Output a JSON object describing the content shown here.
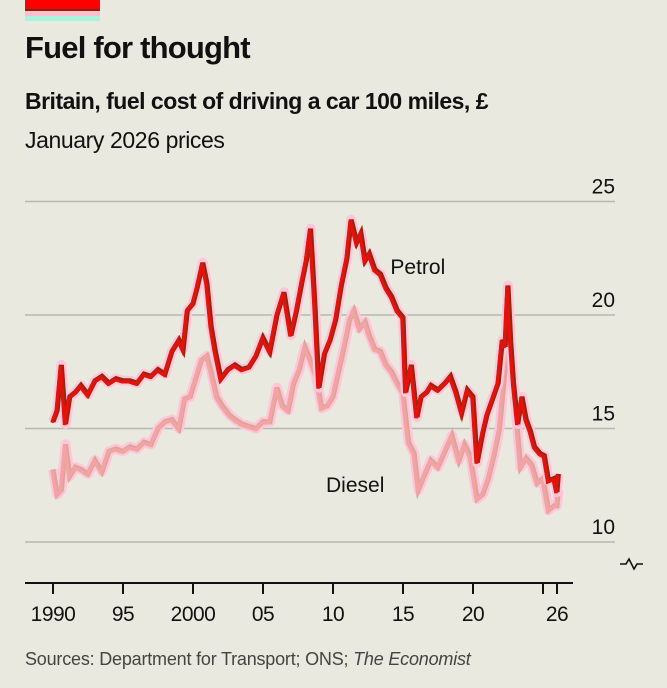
{
  "header": {
    "title": "Fuel for thought",
    "subtitle": "Britain, fuel cost of driving a car 100 miles, £",
    "subtitle2": "January 2026 prices"
  },
  "footer": {
    "sources_prefix": "Sources: Department for Transport; ONS; ",
    "sources_italic": "The Economist"
  },
  "colors": {
    "background": "#e9e9df",
    "petrol": "#e3120b",
    "petrol_dark": "#8b2a12",
    "diesel": "#f5a3a3",
    "diesel_dark": "#d8a79b",
    "halo": "#ffc6da",
    "grid": "#b7b7ad",
    "tag_red": "#ff0000"
  },
  "chart_data": {
    "type": "line",
    "title": "Fuel for thought",
    "subtitle": "Britain, fuel cost of driving a car 100 miles, £ — January 2026 prices",
    "xlabel": "",
    "ylabel": "£",
    "xlim": [
      1990,
      2026
    ],
    "ylim": [
      10,
      25
    ],
    "y_axis_side": "right",
    "y_axis_broken": true,
    "grid": true,
    "yticks": [
      10,
      15,
      20,
      25
    ],
    "ytick_labels": [
      "10",
      "15",
      "20",
      "25"
    ],
    "xticks": [
      1990,
      1995,
      2000,
      2005,
      2010,
      2015,
      2020,
      2025,
      2026
    ],
    "xtick_labels": [
      "1990",
      "95",
      "2000",
      "05",
      "10",
      "15",
      "20",
      "",
      "26"
    ],
    "legend": "inline labels",
    "series": [
      {
        "name": "Petrol",
        "label_position": "above line, around 2015",
        "x": [
          1990.0,
          1990.3,
          1990.6,
          1990.9,
          1991.2,
          1991.6,
          1992.0,
          1992.5,
          1993.0,
          1993.5,
          1994.0,
          1994.5,
          1995.0,
          1995.5,
          1996.0,
          1996.5,
          1997.0,
          1997.5,
          1998.0,
          1998.5,
          1999.0,
          1999.3,
          1999.6,
          2000.0,
          2000.3,
          2000.7,
          2001.0,
          2001.3,
          2001.6,
          2002.0,
          2002.5,
          2003.0,
          2003.5,
          2004.0,
          2004.5,
          2005.0,
          2005.5,
          2006.0,
          2006.5,
          2007.0,
          2007.4,
          2007.8,
          2008.1,
          2008.4,
          2008.7,
          2009.0,
          2009.4,
          2009.8,
          2010.2,
          2010.6,
          2011.0,
          2011.3,
          2011.7,
          2012.0,
          2012.3,
          2012.6,
          2013.0,
          2013.4,
          2013.8,
          2014.2,
          2014.6,
          2015.0,
          2015.2,
          2015.6,
          2016.0,
          2016.3,
          2016.7,
          2017.0,
          2017.5,
          2018.0,
          2018.4,
          2018.8,
          2019.2,
          2019.6,
          2020.0,
          2020.3,
          2020.7,
          2021.0,
          2021.4,
          2021.8,
          2022.1,
          2022.3,
          2022.5,
          2022.7,
          2022.9,
          2023.2,
          2023.5,
          2023.8,
          2024.1,
          2024.4,
          2024.8,
          2025.1,
          2025.4,
          2025.8,
          2026.0,
          2026.1
        ],
        "values": [
          15.3,
          15.8,
          17.8,
          15.2,
          16.4,
          16.6,
          16.9,
          16.5,
          17.1,
          17.3,
          17.0,
          17.2,
          17.1,
          17.1,
          17.0,
          17.4,
          17.3,
          17.6,
          17.4,
          18.4,
          18.9,
          18.5,
          20.2,
          20.5,
          21.2,
          22.3,
          21.4,
          19.5,
          18.4,
          17.2,
          17.6,
          17.8,
          17.6,
          17.7,
          18.2,
          19.0,
          18.4,
          20.0,
          21.0,
          19.1,
          20.2,
          21.5,
          22.4,
          23.8,
          20.6,
          16.8,
          18.3,
          18.9,
          19.8,
          21.3,
          22.5,
          24.2,
          23.2,
          23.6,
          22.4,
          22.7,
          22.0,
          21.8,
          21.2,
          20.8,
          20.2,
          19.9,
          16.6,
          17.8,
          15.5,
          16.4,
          16.6,
          16.9,
          16.7,
          17.0,
          17.3,
          16.6,
          15.7,
          16.7,
          16.4,
          13.5,
          14.8,
          15.6,
          16.3,
          17.0,
          18.9,
          18.6,
          21.3,
          18.8,
          17.0,
          15.2,
          16.4,
          15.4,
          14.9,
          14.2,
          13.9,
          13.8,
          12.7,
          12.8,
          12.2,
          13.0
        ]
      },
      {
        "name": "Diesel",
        "label_position": "below line, around 2011",
        "x": [
          1990.0,
          1990.3,
          1990.6,
          1990.9,
          1991.2,
          1991.6,
          1992.0,
          1992.5,
          1993.0,
          1993.5,
          1994.0,
          1994.5,
          1995.0,
          1995.5,
          1996.0,
          1996.5,
          1997.0,
          1997.5,
          1998.0,
          1998.5,
          1999.0,
          1999.4,
          1999.8,
          2000.2,
          2000.6,
          2001.0,
          2001.3,
          2001.7,
          2002.1,
          2002.6,
          2003.0,
          2003.5,
          2004.0,
          2004.5,
          2005.0,
          2005.5,
          2006.0,
          2006.4,
          2006.8,
          2007.2,
          2007.6,
          2008.0,
          2008.4,
          2008.8,
          2009.2,
          2009.6,
          2010.0,
          2010.4,
          2010.8,
          2011.2,
          2011.5,
          2011.9,
          2012.3,
          2012.6,
          2013.0,
          2013.4,
          2013.8,
          2014.2,
          2014.6,
          2015.0,
          2015.4,
          2015.8,
          2016.1,
          2016.5,
          2017.0,
          2017.5,
          2018.0,
          2018.5,
          2019.0,
          2019.4,
          2019.8,
          2020.3,
          2020.7,
          2021.1,
          2021.5,
          2021.9,
          2022.2,
          2022.5,
          2022.8,
          2023.1,
          2023.4,
          2023.8,
          2024.2,
          2024.6,
          2025.0,
          2025.4,
          2025.8,
          2026.0,
          2026.1
        ],
        "values": [
          13.2,
          12.1,
          12.3,
          14.3,
          12.9,
          13.3,
          13.2,
          13.0,
          13.6,
          13.1,
          14.0,
          14.1,
          14.0,
          14.2,
          14.1,
          14.4,
          14.3,
          15.0,
          15.3,
          15.4,
          15.0,
          16.3,
          16.4,
          17.2,
          18.0,
          18.2,
          17.5,
          16.4,
          16.0,
          15.6,
          15.4,
          15.2,
          15.1,
          15.0,
          15.3,
          15.3,
          16.8,
          16.0,
          15.8,
          17.0,
          17.6,
          18.6,
          18.0,
          17.3,
          15.9,
          16.0,
          16.4,
          17.5,
          18.6,
          19.8,
          20.2,
          19.4,
          19.7,
          19.1,
          18.5,
          18.4,
          17.8,
          17.5,
          17.0,
          16.6,
          14.4,
          13.9,
          12.3,
          12.9,
          13.6,
          13.3,
          14.0,
          14.7,
          13.6,
          14.3,
          13.8,
          11.9,
          12.1,
          12.8,
          13.8,
          15.0,
          17.0,
          18.8,
          17.5,
          15.5,
          13.3,
          13.7,
          13.4,
          12.6,
          12.8,
          11.4,
          11.6,
          11.6,
          12.3
        ]
      }
    ]
  }
}
